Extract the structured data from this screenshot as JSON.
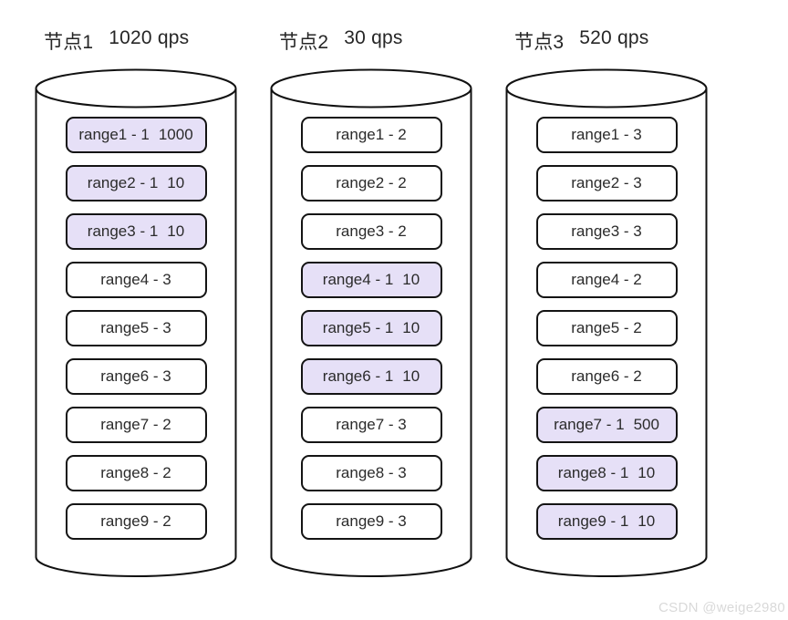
{
  "watermark": "CSDN @weige2980",
  "colors": {
    "highlight_fill": "#e6e0f7",
    "box_stroke": "#141414",
    "cylinder_stroke": "#111111",
    "text": "#2b2b2b"
  },
  "nodes": [
    {
      "title": "节点1",
      "qps": "1020 qps",
      "ranges": [
        {
          "label": "range1 - 1",
          "qps": "1000",
          "highlighted": true
        },
        {
          "label": "range2 - 1",
          "qps": "10",
          "highlighted": true
        },
        {
          "label": "range3 - 1",
          "qps": "10",
          "highlighted": true
        },
        {
          "label": "range4 - 3",
          "qps": "",
          "highlighted": false
        },
        {
          "label": "range5 - 3",
          "qps": "",
          "highlighted": false
        },
        {
          "label": "range6 - 3",
          "qps": "",
          "highlighted": false
        },
        {
          "label": "range7 - 2",
          "qps": "",
          "highlighted": false
        },
        {
          "label": "range8 - 2",
          "qps": "",
          "highlighted": false
        },
        {
          "label": "range9 - 2",
          "qps": "",
          "highlighted": false
        }
      ]
    },
    {
      "title": "节点2",
      "qps": "30 qps",
      "ranges": [
        {
          "label": "range1 - 2",
          "qps": "",
          "highlighted": false
        },
        {
          "label": "range2 - 2",
          "qps": "",
          "highlighted": false
        },
        {
          "label": "range3 - 2",
          "qps": "",
          "highlighted": false
        },
        {
          "label": "range4 - 1",
          "qps": "10",
          "highlighted": true
        },
        {
          "label": "range5 - 1",
          "qps": "10",
          "highlighted": true
        },
        {
          "label": "range6 - 1",
          "qps": "10",
          "highlighted": true
        },
        {
          "label": "range7 - 3",
          "qps": "",
          "highlighted": false
        },
        {
          "label": "range8 - 3",
          "qps": "",
          "highlighted": false
        },
        {
          "label": "range9 - 3",
          "qps": "",
          "highlighted": false
        }
      ]
    },
    {
      "title": "节点3",
      "qps": "520 qps",
      "ranges": [
        {
          "label": "range1 - 3",
          "qps": "",
          "highlighted": false
        },
        {
          "label": "range2 - 3",
          "qps": "",
          "highlighted": false
        },
        {
          "label": "range3 - 3",
          "qps": "",
          "highlighted": false
        },
        {
          "label": "range4 - 2",
          "qps": "",
          "highlighted": false
        },
        {
          "label": "range5 - 2",
          "qps": "",
          "highlighted": false
        },
        {
          "label": "range6 - 2",
          "qps": "",
          "highlighted": false
        },
        {
          "label": "range7 - 1",
          "qps": "500",
          "highlighted": true
        },
        {
          "label": "range8 - 1",
          "qps": "10",
          "highlighted": true
        },
        {
          "label": "range9 - 1",
          "qps": "10",
          "highlighted": true
        }
      ]
    }
  ]
}
